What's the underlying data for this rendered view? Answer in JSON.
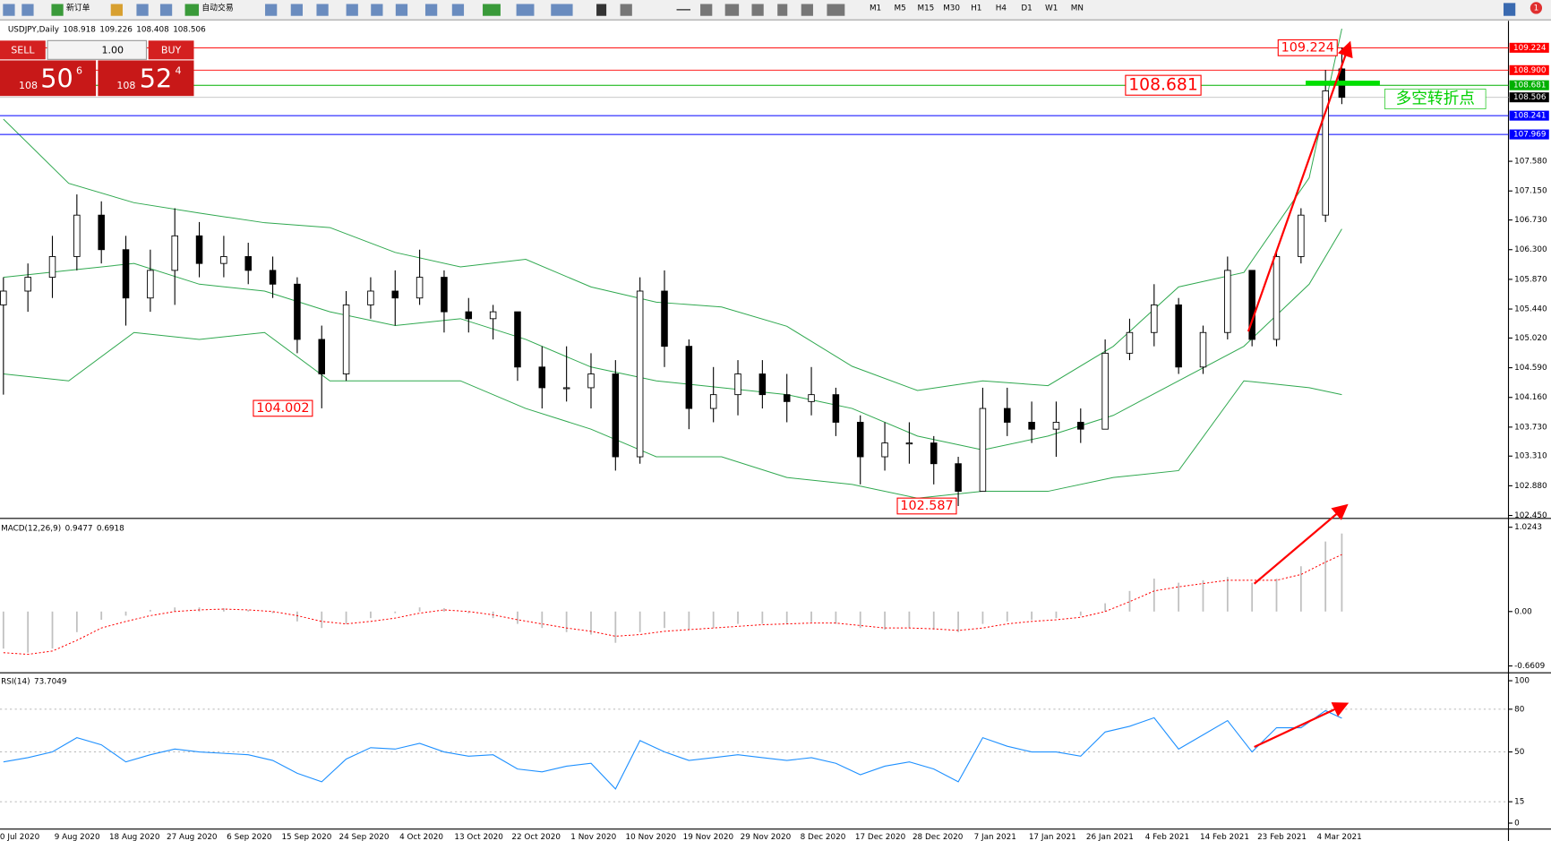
{
  "toolbar": {
    "new_order": "新订单",
    "auto_trade": "自动交易",
    "timeframes": [
      "M1",
      "M5",
      "M15",
      "M30",
      "H1",
      "H4",
      "D1",
      "W1",
      "MN"
    ],
    "alerts": "1"
  },
  "trade_panel": {
    "sell": "SELL",
    "buy": "BUY",
    "volume": "1.00",
    "sell_price": [
      "108",
      "50",
      "6"
    ],
    "buy_price": [
      "108",
      "52",
      "4"
    ]
  },
  "chart_data": [
    {
      "type": "candlestick",
      "title": "USDJPY,Daily",
      "ohlc": [
        108.918,
        109.226,
        108.408,
        108.506
      ],
      "xlim": [
        -0.42,
        184.42
      ],
      "ylim": [
        102.45,
        109.6
      ],
      "x_labels": [
        "0 Jul 2020",
        "9 Aug 2020",
        "18 Aug 2020",
        "27 Aug 2020",
        "6 Sep 2020",
        "15 Sep 2020",
        "24 Sep 2020",
        "4 Oct 2020",
        "13 Oct 2020",
        "22 Oct 2020",
        "1 Nov 2020",
        "10 Nov 2020",
        "19 Nov 2020",
        "29 Nov 2020",
        "8 Dec 2020",
        "17 Dec 2020",
        "28 Dec 2020",
        "7 Jan 2021",
        "17 Jan 2021",
        "26 Jan 2021",
        "4 Feb 2021",
        "14 Feb 2021",
        "23 Feb 2021",
        "4 Mar 2021"
      ],
      "yticks": [
        {
          "value": 107.58,
          "label": "107.580"
        },
        {
          "value": 107.15,
          "label": "107.150"
        },
        {
          "value": 106.73,
          "label": "106.730"
        },
        {
          "value": 106.3,
          "label": "106.300"
        },
        {
          "value": 105.87,
          "label": "105.870"
        },
        {
          "value": 105.44,
          "label": "105.440"
        },
        {
          "value": 105.02,
          "label": "105.020"
        },
        {
          "value": 104.59,
          "label": "104.590"
        },
        {
          "value": 104.16,
          "label": "104.160"
        },
        {
          "value": 103.73,
          "label": "103.730"
        },
        {
          "value": 103.31,
          "label": "103.310"
        },
        {
          "value": 102.88,
          "label": "102.880"
        },
        {
          "value": 102.45,
          "label": "102.450"
        }
      ],
      "levels": [
        {
          "value": 109.224,
          "color": "#ff0000"
        },
        {
          "value": {
            "value": 108.9,
            "label": "108.900"
          },
          "color": "#ff0000"
        },
        {
          "value": 108.681,
          "color": "#00b000"
        },
        {
          "value": 108.506,
          "color": "#c0c0c0",
          "label_color": "#000000"
        },
        {
          "value": 108.241,
          "color": "#0000ff"
        },
        {
          "value": 107.969,
          "color": "#0000ff"
        }
      ],
      "up_color": "#ffffff",
      "down_color": "#000000",
      "outline": "#000000",
      "x": [
        0,
        3,
        6,
        9,
        12,
        15,
        18,
        21,
        24,
        27,
        30,
        33,
        36,
        39,
        42,
        45,
        48,
        51,
        54,
        57,
        60,
        63,
        66,
        69,
        72,
        75,
        78,
        81,
        84,
        87,
        90,
        93,
        96,
        99,
        102,
        105,
        108,
        111,
        114,
        117,
        120,
        123,
        126,
        129,
        132,
        135,
        138,
        141,
        144,
        147,
        150,
        153,
        156,
        159,
        162,
        164
      ],
      "candles": [
        [
          105.5,
          105.9,
          104.2,
          105.7
        ],
        [
          105.7,
          106.1,
          105.4,
          105.9
        ],
        [
          105.9,
          106.5,
          105.6,
          106.2
        ],
        [
          106.2,
          107.1,
          106.0,
          106.8
        ],
        [
          106.8,
          107.0,
          106.1,
          106.3
        ],
        [
          106.3,
          106.5,
          105.2,
          105.6
        ],
        [
          105.6,
          106.3,
          105.4,
          106.0
        ],
        [
          106.0,
          106.9,
          105.5,
          106.5
        ],
        [
          106.5,
          106.7,
          105.9,
          106.1
        ],
        [
          106.1,
          106.5,
          105.9,
          106.2
        ],
        [
          106.2,
          106.4,
          105.8,
          106.0
        ],
        [
          106.0,
          106.2,
          105.6,
          105.8
        ],
        [
          105.8,
          105.9,
          104.8,
          105.0
        ],
        [
          105.0,
          105.2,
          104.002,
          104.5
        ],
        [
          104.5,
          105.7,
          104.4,
          105.5
        ],
        [
          105.5,
          105.9,
          105.3,
          105.7
        ],
        [
          105.7,
          106.0,
          105.2,
          105.6
        ],
        [
          105.6,
          106.3,
          105.5,
          105.9
        ],
        [
          105.9,
          106.0,
          105.1,
          105.4
        ],
        [
          105.4,
          105.6,
          105.1,
          105.3
        ],
        [
          105.3,
          105.5,
          105.0,
          105.4
        ],
        [
          105.4,
          105.4,
          104.4,
          104.6
        ],
        [
          104.6,
          104.9,
          104.0,
          104.3
        ],
        [
          104.3,
          104.9,
          104.1,
          104.3
        ],
        [
          104.3,
          104.8,
          104.0,
          104.5
        ],
        [
          104.5,
          104.7,
          103.1,
          103.3
        ],
        [
          103.3,
          105.9,
          103.2,
          105.7
        ],
        [
          105.7,
          106.0,
          104.6,
          104.9
        ],
        [
          104.9,
          105.0,
          103.7,
          104.0
        ],
        [
          104.0,
          104.6,
          103.8,
          104.2
        ],
        [
          104.2,
          104.7,
          103.9,
          104.5
        ],
        [
          104.5,
          104.7,
          104.0,
          104.2
        ],
        [
          104.2,
          104.5,
          103.8,
          104.1
        ],
        [
          104.1,
          104.6,
          103.9,
          104.2
        ],
        [
          104.2,
          104.3,
          103.6,
          103.8
        ],
        [
          103.8,
          103.9,
          102.9,
          103.3
        ],
        [
          103.3,
          103.8,
          103.1,
          103.5
        ],
        [
          103.5,
          103.8,
          103.2,
          103.5
        ],
        [
          103.5,
          103.6,
          102.9,
          103.2
        ],
        [
          103.2,
          103.3,
          102.587,
          102.8
        ],
        [
          102.8,
          104.3,
          102.8,
          104.0
        ],
        [
          104.0,
          104.3,
          103.6,
          103.8
        ],
        [
          103.8,
          104.1,
          103.5,
          103.7
        ],
        [
          103.7,
          104.1,
          103.3,
          103.8
        ],
        [
          103.8,
          104.0,
          103.5,
          103.7
        ],
        [
          103.7,
          105.0,
          103.7,
          104.8
        ],
        [
          104.8,
          105.3,
          104.7,
          105.1
        ],
        [
          105.1,
          105.8,
          104.9,
          105.5
        ],
        [
          105.5,
          105.6,
          104.5,
          104.6
        ],
        [
          104.6,
          105.2,
          104.5,
          105.1
        ],
        [
          105.1,
          106.2,
          105.0,
          106.0
        ],
        [
          106.0,
          106.0,
          104.9,
          105.0
        ],
        [
          105.0,
          106.3,
          104.9,
          106.2
        ],
        [
          106.2,
          106.9,
          106.1,
          106.8
        ],
        [
          106.8,
          108.9,
          106.7,
          108.6
        ],
        [
          108.918,
          109.226,
          108.408,
          108.506
        ]
      ],
      "bands": {
        "color": "#2fa84f",
        "x": [
          0,
          8,
          16,
          24,
          32,
          40,
          48,
          56,
          64,
          72,
          80,
          88,
          96,
          104,
          112,
          120,
          128,
          136,
          144,
          152,
          160,
          164
        ],
        "upper": [
          108.19,
          107.26,
          106.98,
          106.83,
          106.69,
          106.62,
          106.26,
          106.05,
          106.16,
          105.76,
          105.54,
          105.47,
          105.19,
          104.61,
          104.26,
          104.4,
          104.33,
          104.9,
          105.76,
          105.97,
          107.34,
          109.5
        ],
        "middle": [
          105.9,
          106.0,
          106.1,
          105.8,
          105.7,
          105.4,
          105.2,
          105.3,
          105.0,
          104.6,
          104.4,
          104.3,
          104.2,
          104.0,
          103.6,
          103.4,
          103.6,
          103.9,
          104.4,
          104.9,
          105.8,
          106.6
        ],
        "lower": [
          104.5,
          104.4,
          105.1,
          105.0,
          105.1,
          104.4,
          104.4,
          104.4,
          104.0,
          103.7,
          103.3,
          103.3,
          103.0,
          102.9,
          102.7,
          102.8,
          102.8,
          103.0,
          103.1,
          104.4,
          104.3,
          104.2
        ]
      },
      "annotations": [
        {
          "label": "109.224",
          "value": 109.224
        },
        {
          "label": "108.681",
          "value": 108.681
        },
        {
          "label": "104.002",
          "value": 104.002
        },
        {
          "label": "102.587",
          "value": 102.587
        },
        {
          "text": "多空转折点"
        }
      ]
    },
    {
      "type": "macd",
      "title": "MACD(12,26,9)",
      "readout": [
        0.9477,
        0.6918
      ],
      "ylim": [
        -0.72,
        1.107
      ],
      "yticks": [
        {
          "value": 1.0243,
          "label": "1.0243"
        },
        {
          "value": 0,
          "label": "0.00"
        },
        {
          "value": -0.6609,
          "label": "-0.6609"
        }
      ],
      "hist_color": "#c0c0c0",
      "signal_color": "#ff0000",
      "x": [
        0,
        3,
        6,
        9,
        12,
        15,
        18,
        21,
        24,
        27,
        30,
        33,
        36,
        39,
        42,
        45,
        48,
        51,
        54,
        57,
        60,
        63,
        66,
        69,
        72,
        75,
        78,
        81,
        84,
        87,
        90,
        93,
        96,
        99,
        102,
        105,
        108,
        111,
        114,
        117,
        120,
        123,
        126,
        129,
        132,
        135,
        138,
        141,
        144,
        147,
        150,
        153,
        156,
        159,
        162,
        164
      ],
      "histogram": [
        -0.45,
        -0.5,
        -0.45,
        -0.25,
        -0.1,
        -0.05,
        0.02,
        0.05,
        0.05,
        0.04,
        0.02,
        -0.02,
        -0.12,
        -0.2,
        -0.15,
        -0.08,
        -0.02,
        0.05,
        0.04,
        -0.02,
        -0.08,
        -0.15,
        -0.2,
        -0.25,
        -0.28,
        -0.38,
        -0.25,
        -0.2,
        -0.22,
        -0.2,
        -0.15,
        -0.15,
        -0.15,
        -0.13,
        -0.15,
        -0.2,
        -0.22,
        -0.2,
        -0.22,
        -0.25,
        -0.15,
        -0.12,
        -0.1,
        -0.08,
        -0.05,
        0.1,
        0.25,
        0.4,
        0.35,
        0.38,
        0.42,
        0.35,
        0.4,
        0.55,
        0.85,
        0.9477
      ],
      "signal": [
        -0.5,
        -0.52,
        -0.48,
        -0.35,
        -0.2,
        -0.12,
        -0.05,
        0,
        0.02,
        0.03,
        0.02,
        0,
        -0.05,
        -0.12,
        -0.15,
        -0.12,
        -0.08,
        -0.02,
        0.02,
        0,
        -0.04,
        -0.1,
        -0.15,
        -0.2,
        -0.24,
        -0.3,
        -0.28,
        -0.24,
        -0.22,
        -0.2,
        -0.18,
        -0.16,
        -0.15,
        -0.14,
        -0.14,
        -0.17,
        -0.2,
        -0.2,
        -0.21,
        -0.23,
        -0.2,
        -0.15,
        -0.12,
        -0.1,
        -0.07,
        0,
        0.12,
        0.25,
        0.3,
        0.34,
        0.38,
        0.38,
        0.38,
        0.45,
        0.6,
        0.6918
      ]
    },
    {
      "type": "rsi",
      "title": "RSI(14)",
      "readout": 73.7049,
      "ylim": [
        -4.2,
        104.2
      ],
      "yticks": [
        100,
        80,
        50,
        15,
        0
      ],
      "levels": [
        80,
        50,
        15
      ],
      "color": "#1e90ff",
      "x": [
        0,
        3,
        6,
        9,
        12,
        15,
        18,
        21,
        24,
        27,
        30,
        33,
        36,
        39,
        42,
        45,
        48,
        51,
        54,
        57,
        60,
        63,
        66,
        69,
        72,
        75,
        78,
        81,
        84,
        87,
        90,
        93,
        96,
        99,
        102,
        105,
        108,
        111,
        114,
        117,
        120,
        123,
        126,
        129,
        132,
        135,
        138,
        141,
        144,
        147,
        150,
        153,
        156,
        159,
        162,
        164
      ],
      "values": [
        43,
        46,
        50,
        60,
        55,
        43,
        48,
        52,
        50,
        49,
        48,
        44,
        35,
        29,
        45,
        53,
        52,
        56,
        50,
        47,
        48,
        38,
        36,
        40,
        42,
        24,
        58,
        50,
        44,
        46,
        48,
        46,
        44,
        46,
        42,
        34,
        40,
        43,
        38,
        29,
        60,
        54,
        50,
        50,
        47,
        64,
        68,
        74,
        52,
        62,
        72,
        50,
        67,
        67,
        79,
        73.7049
      ]
    }
  ]
}
